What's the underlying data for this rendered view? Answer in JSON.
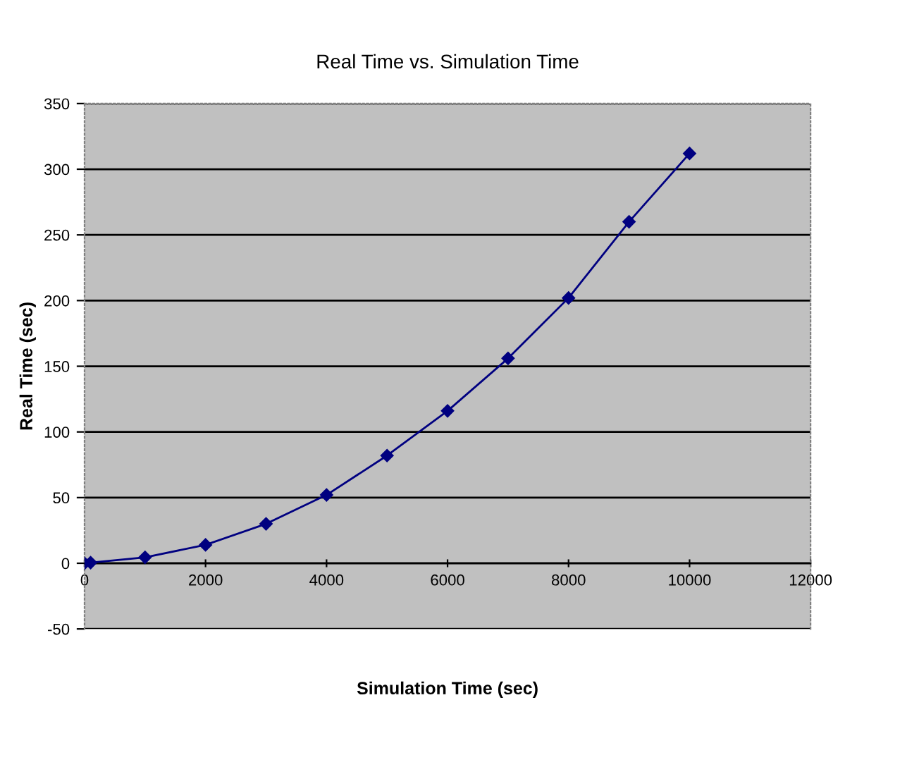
{
  "chart_data": {
    "type": "line",
    "title": "Real Time vs. Simulation Time",
    "xlabel": "Simulation Time (sec)",
    "ylabel": "Real Time (sec)",
    "x": [
      0,
      100,
      1000,
      2000,
      3000,
      4000,
      5000,
      6000,
      7000,
      8000,
      9000,
      10000
    ],
    "series": [
      {
        "color": "#000080",
        "values": [
          0,
          0.5,
          4.5,
          14,
          30,
          52,
          82,
          116,
          156,
          202,
          260,
          312
        ]
      }
    ],
    "xlim": [
      0,
      12000
    ],
    "xticks": [
      0,
      2000,
      4000,
      6000,
      8000,
      10000,
      12000
    ],
    "ylim": [
      -50,
      350
    ],
    "yticks": [
      -50,
      0,
      50,
      100,
      150,
      200,
      250,
      300,
      350
    ],
    "grid": "y",
    "marker": "diamond",
    "line_style": "solid",
    "legend": false
  }
}
